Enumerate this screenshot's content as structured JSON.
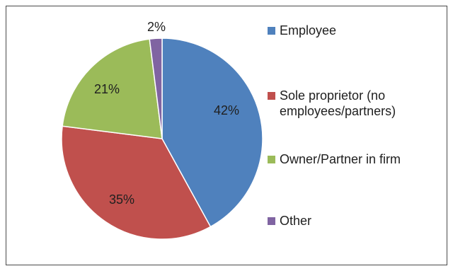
{
  "chart_data": {
    "type": "pie",
    "categories": [
      "Employee",
      "Sole proprietor (no\nemployees/partners)",
      "Owner/Partner in firm",
      "Other"
    ],
    "values": [
      42,
      35,
      21,
      2
    ],
    "data_labels": [
      "42%",
      "35%",
      "21%",
      "2%"
    ],
    "colors": [
      "#4f81bd",
      "#c0504d",
      "#9bbb59",
      "#8064a2"
    ],
    "start_angle_deg": 0,
    "direction": "clockwise",
    "legend": "right",
    "title": ""
  },
  "legend": {
    "items": [
      "Employee",
      "Sole proprietor (no\nemployees/partners)",
      "Owner/Partner in firm",
      "Other"
    ]
  }
}
